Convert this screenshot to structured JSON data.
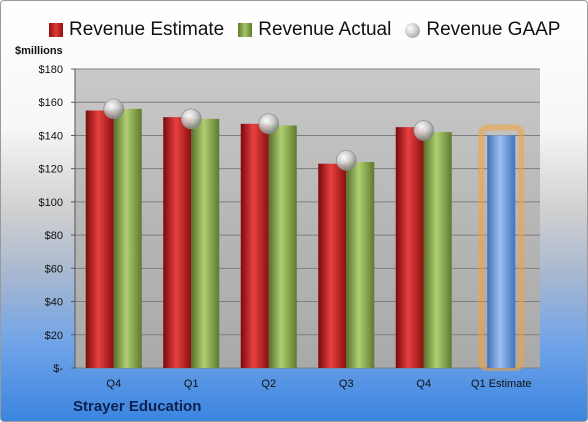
{
  "legend": {
    "estimate": "Revenue Estimate",
    "actual": "Revenue Actual",
    "gaap": "Revenue GAAP"
  },
  "company": "Strayer Education",
  "colors": {
    "estimate": "#d42a2a",
    "actual": "#8fb04a",
    "gaap": "#c8c8c8",
    "forecast": "#6d9be0",
    "highlight": "#f2a23a"
  },
  "chart_data": {
    "type": "bar",
    "title": "",
    "ylabel": "$millions",
    "xlabel": "",
    "ylim": [
      0,
      180
    ],
    "yticks": [
      0,
      20,
      40,
      60,
      80,
      100,
      120,
      140,
      160,
      180
    ],
    "ytick_labels": [
      "$-",
      "$20",
      "$40",
      "$60",
      "$80",
      "$100",
      "$120",
      "$140",
      "$160",
      "$180"
    ],
    "categories": [
      "Q4",
      "Q1",
      "Q2",
      "Q3",
      "Q4",
      "Q1 Estimate"
    ],
    "series": [
      {
        "name": "Revenue Estimate",
        "values": [
          155,
          151,
          147,
          123,
          145,
          null
        ]
      },
      {
        "name": "Revenue Actual",
        "values": [
          156,
          150,
          146,
          124,
          142,
          null
        ]
      },
      {
        "name": "Revenue GAAP",
        "values": [
          156,
          150,
          147,
          125,
          143,
          null
        ]
      }
    ],
    "forecast": {
      "category": "Q1 Estimate",
      "value": 140
    },
    "grid": true,
    "legend_position": "top"
  }
}
